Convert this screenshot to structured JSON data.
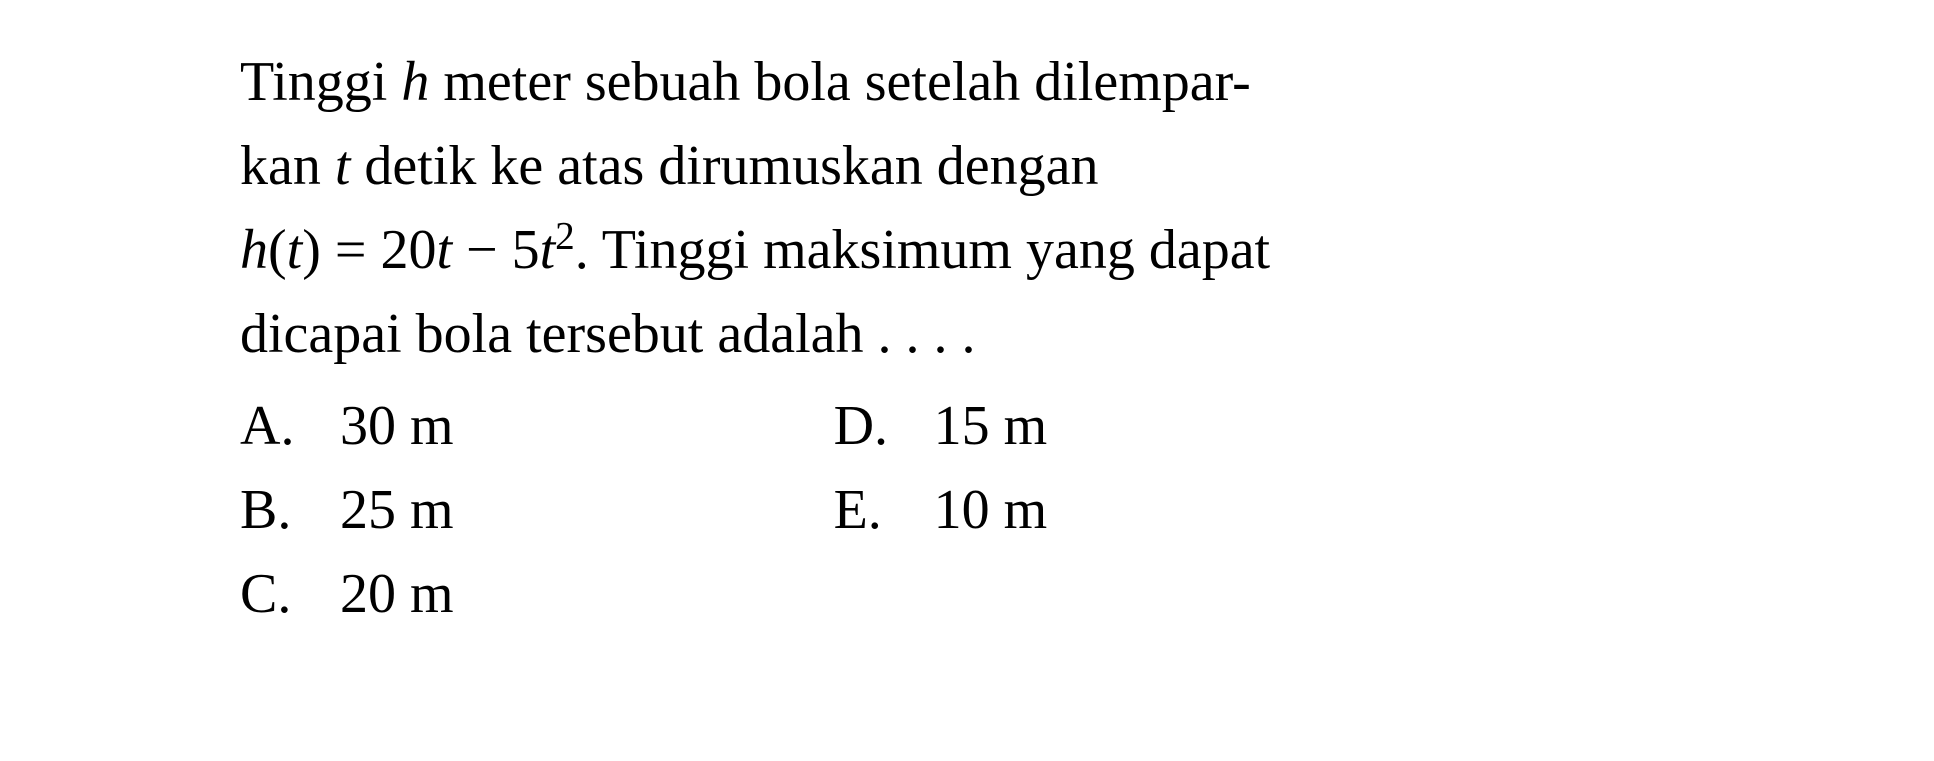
{
  "question": {
    "line1_part1": "Tinggi ",
    "line1_var1": "h",
    "line1_part2": " meter sebuah bola setelah dilempar-",
    "line2_part1": "kan ",
    "line2_var1": "t",
    "line2_part2": " detik ke atas dirumuskan dengan",
    "line3_func": "h",
    "line3_open": "(",
    "line3_var": "t",
    "line3_close": ") = 20",
    "line3_var2": "t",
    "line3_minus": " − 5",
    "line3_var3": "t",
    "line3_exp": "2",
    "line3_part2": ". Tinggi maksimum yang dapat",
    "line4": "dicapai bola tersebut adalah . . . ."
  },
  "answers": {
    "a": {
      "label": "A.",
      "value": "30 m"
    },
    "b": {
      "label": "B.",
      "value": "25 m"
    },
    "c": {
      "label": "C.",
      "value": "20 m"
    },
    "d": {
      "label": "D.",
      "value": "15 m"
    },
    "e": {
      "label": "E.",
      "value": "10 m"
    }
  },
  "styling": {
    "background_color": "#ffffff",
    "text_color": "#000000",
    "font_family": "Times New Roman",
    "question_fontsize": 56,
    "answer_fontsize": 56,
    "line_height": 1.5
  }
}
